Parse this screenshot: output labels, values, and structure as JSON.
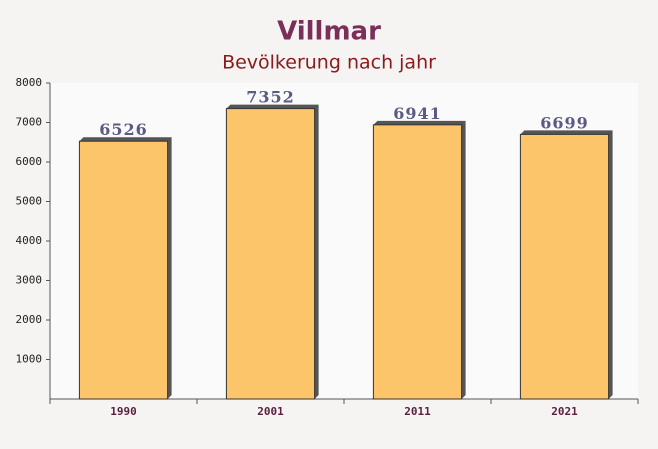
{
  "chart_data": {
    "type": "bar",
    "title": "Villmar",
    "subtitle": "Bevölkerung nach jahr",
    "categories": [
      "1990",
      "2001",
      "2011",
      "2021"
    ],
    "values": [
      6526,
      7352,
      6941,
      6699
    ],
    "color": "#fdbb4f",
    "ylim": [
      0,
      8000
    ],
    "yticks": [
      1000,
      2000,
      3000,
      4000,
      5000,
      6000,
      7000,
      8000
    ]
  }
}
